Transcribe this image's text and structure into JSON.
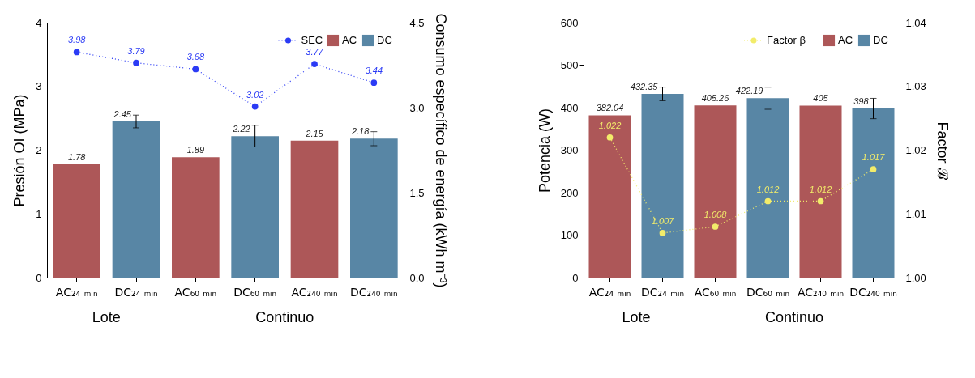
{
  "chart_data": [
    {
      "type": "bar",
      "ylabel": "Presión OI (MPa)",
      "y2label": "Consumo específico de energía (kWh m⁻³)",
      "categories": [
        "AC₂₄ ₘᵢₙ",
        "DC₂₄ ₘᵢₙ",
        "AC₆₀ ₘᵢₙ",
        "DC₆₀ ₘᵢₙ",
        "AC₂₄₀ ₘᵢₙ",
        "DC₂₄₀ ₘᵢₙ"
      ],
      "ylim": [
        0,
        4
      ],
      "yticks": [
        0,
        1,
        2,
        3,
        4
      ],
      "y2lim": [
        0,
        4.5
      ],
      "y2ticks": [
        {
          "value": 0,
          "label": "0.0"
        },
        {
          "value": 1.5,
          "label": "1.5"
        },
        {
          "value": 3,
          "label": "3.0"
        },
        {
          "value": 4.5,
          "label": "4.5"
        }
      ],
      "series": [
        {
          "name": "SEC",
          "type": "line",
          "axis": "y2",
          "color": "#2b3bf5",
          "marker": "circle",
          "line_style": "dotted",
          "values": [
            3.98,
            3.79,
            3.68,
            3.02,
            3.77,
            3.44
          ]
        },
        {
          "name": "AC",
          "type": "bar",
          "color": "#ad5758",
          "values": [
            1.78,
            null,
            1.89,
            null,
            2.15,
            null
          ]
        },
        {
          "name": "DC",
          "type": "bar",
          "color": "#5886a5",
          "values": [
            null,
            2.45,
            null,
            2.22,
            null,
            2.18
          ],
          "errors": [
            null,
            0.1,
            null,
            0.17,
            null,
            0.11
          ]
        }
      ],
      "data_labels": true,
      "legend": "top right",
      "grid": false,
      "annotations": [
        "Lote",
        "Continuo"
      ]
    },
    {
      "type": "bar",
      "ylabel": "Potencia (W)",
      "y2label": "Factor ℬ",
      "categories": [
        "AC₂₄ ₘᵢₙ",
        "DC₂₄ ₘᵢₙ",
        "AC₆₀ ₘᵢₙ",
        "DC₆₀ ₘᵢₙ",
        "AC₂₄₀ ₘᵢₙ",
        "DC₂₄₀ ₘᵢₙ"
      ],
      "ylim": [
        0,
        600
      ],
      "yticks": [
        0,
        100,
        200,
        300,
        400,
        500,
        600
      ],
      "y2lim": [
        1.0,
        1.04
      ],
      "y2ticks": [
        {
          "value": 1.0,
          "label": "1.00"
        },
        {
          "value": 1.01,
          "label": "1.01"
        },
        {
          "value": 1.02,
          "label": "1.02"
        },
        {
          "value": 1.03,
          "label": "1.03"
        },
        {
          "value": 1.04,
          "label": "1.04"
        }
      ],
      "series": [
        {
          "name": "Factor β",
          "type": "line",
          "axis": "y2",
          "color": "#f2ec6a",
          "marker": "circle",
          "line_style": "dotted",
          "values": [
            1.022,
            1.007,
            1.008,
            1.012,
            1.012,
            1.017
          ]
        },
        {
          "name": "AC",
          "type": "bar",
          "color": "#ad5758",
          "values": [
            382.04,
            null,
            405.26,
            null,
            405,
            null
          ]
        },
        {
          "name": "DC",
          "type": "bar",
          "color": "#5886a5",
          "values": [
            null,
            432.35,
            null,
            422.19,
            null,
            398
          ],
          "errors": [
            null,
            16,
            null,
            26,
            null,
            24
          ]
        }
      ],
      "data_labels": true,
      "legend": "top right",
      "grid": false,
      "annotations": [
        "Lote",
        "Continuo"
      ]
    }
  ]
}
